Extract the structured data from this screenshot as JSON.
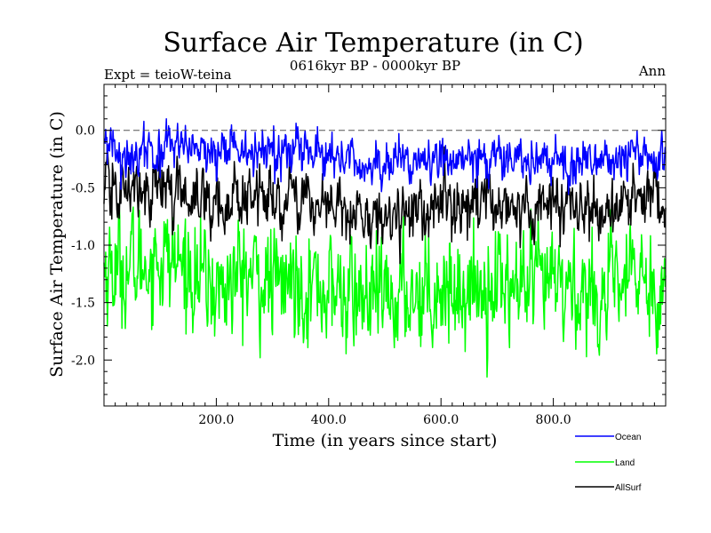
{
  "chart_data": {
    "type": "line",
    "title": "Surface Air Temperature (in C)",
    "subtitle": "0616kyr BP - 0000kyr BP",
    "left_annotation": "Expt = teioW-teina",
    "right_annotation": "Ann",
    "xlabel": "Time (in years since start)",
    "ylabel": "Surface Air Temperature (in C)",
    "xlim": [
      0,
      1000
    ],
    "ylim": [
      -2.4,
      0.4
    ],
    "xticks": [
      200,
      400,
      600,
      800
    ],
    "xtick_labels": [
      "200.0",
      "400.0",
      "600.0",
      "800.0"
    ],
    "yticks": [
      0.0,
      -0.5,
      -1.0,
      -1.5,
      -2.0
    ],
    "ytick_labels": [
      "0.0",
      "-0.5",
      "-1.0",
      "-1.5",
      "-2.0"
    ],
    "reference_line": {
      "y": 0.0,
      "style": "dashed"
    },
    "series": [
      {
        "name": "Ocean",
        "color": "#0000ff",
        "x": [
          0,
          50,
          100,
          150,
          200,
          250,
          300,
          350,
          400,
          450,
          500,
          550,
          600,
          650,
          700,
          750,
          800,
          850,
          900,
          950,
          1000
        ],
        "values": [
          -0.15,
          -0.22,
          -0.18,
          -0.16,
          -0.22,
          -0.15,
          -0.22,
          -0.2,
          -0.25,
          -0.28,
          -0.3,
          -0.27,
          -0.25,
          -0.28,
          -0.22,
          -0.25,
          -0.24,
          -0.25,
          -0.3,
          -0.2,
          -0.28
        ]
      },
      {
        "name": "Land",
        "color": "#00ff00",
        "x": [
          0,
          50,
          100,
          150,
          200,
          250,
          300,
          350,
          400,
          450,
          500,
          550,
          600,
          650,
          700,
          750,
          800,
          850,
          900,
          950,
          1000
        ],
        "values": [
          -1.2,
          -1.2,
          -1.1,
          -1.2,
          -1.4,
          -1.25,
          -1.35,
          -1.3,
          -1.4,
          -1.45,
          -1.5,
          -1.4,
          -1.35,
          -1.4,
          -1.3,
          -1.4,
          -1.35,
          -1.4,
          -1.45,
          -1.25,
          -1.4
        ]
      },
      {
        "name": "AllSurf",
        "color": "#000000",
        "x": [
          0,
          50,
          100,
          150,
          200,
          250,
          300,
          350,
          400,
          450,
          500,
          550,
          600,
          650,
          700,
          750,
          800,
          850,
          900,
          950,
          1000
        ],
        "values": [
          -0.5,
          -0.55,
          -0.5,
          -0.55,
          -0.65,
          -0.55,
          -0.62,
          -0.6,
          -0.68,
          -0.72,
          -0.75,
          -0.7,
          -0.66,
          -0.7,
          -0.62,
          -0.68,
          -0.65,
          -0.7,
          -0.75,
          -0.55,
          -0.7
        ]
      }
    ],
    "legend": "bottom-right"
  }
}
